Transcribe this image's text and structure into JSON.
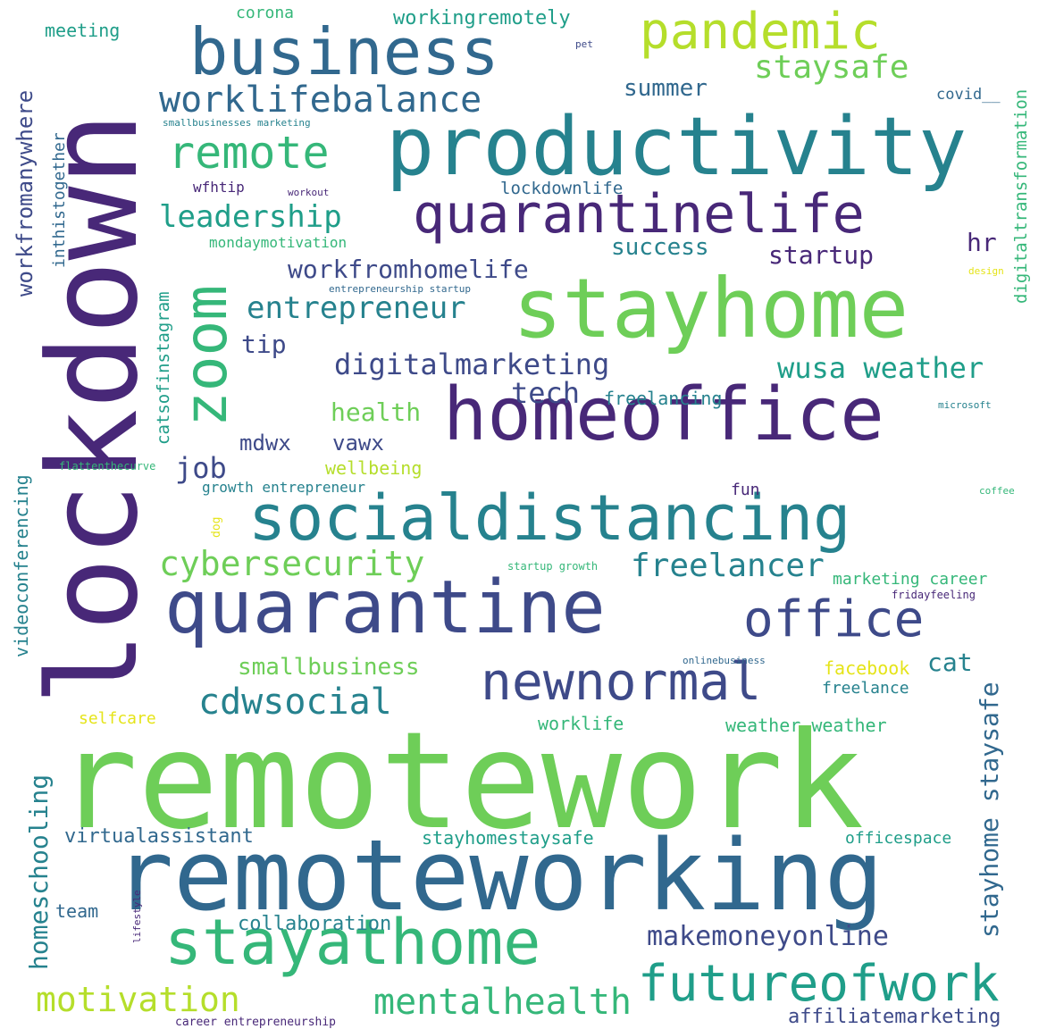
{
  "palette": {
    "dark_purple": "#482878",
    "indigo": "#3e4a89",
    "blue": "#31688e",
    "teal": "#26828e",
    "sea_green": "#1f9e89",
    "green": "#35b779",
    "light_green": "#6ece58",
    "lime": "#b5de2b",
    "yellow": "#e5e419"
  },
  "words": [
    {
      "text": "remotework",
      "color": "light_green"
    },
    {
      "text": "lockdown",
      "color": "dark_purple"
    },
    {
      "text": "remoteworking",
      "color": "blue"
    },
    {
      "text": "productivity",
      "color": "teal"
    },
    {
      "text": "stayhome",
      "color": "light_green"
    },
    {
      "text": "homeoffice",
      "color": "dark_purple"
    },
    {
      "text": "quarantine",
      "color": "indigo"
    },
    {
      "text": "socialdistancing",
      "color": "teal"
    },
    {
      "text": "business",
      "color": "blue"
    },
    {
      "text": "stayathome",
      "color": "green"
    },
    {
      "text": "quarantinelife",
      "color": "dark_purple"
    },
    {
      "text": "newnormal",
      "color": "indigo"
    },
    {
      "text": "futureofwork",
      "color": "sea_green"
    },
    {
      "text": "pandemic",
      "color": "lime"
    },
    {
      "text": "office",
      "color": "indigo"
    },
    {
      "text": "zoom",
      "color": "green"
    },
    {
      "text": "worklifebalance",
      "color": "blue"
    },
    {
      "text": "remote",
      "color": "green"
    },
    {
      "text": "staysafe",
      "color": "light_green"
    },
    {
      "text": "cybersecurity",
      "color": "light_green"
    },
    {
      "text": "cdwsocial",
      "color": "teal"
    },
    {
      "text": "mentalhealth",
      "color": "green"
    },
    {
      "text": "motivation",
      "color": "lime"
    },
    {
      "text": "makemoneyonline",
      "color": "indigo"
    },
    {
      "text": "leadership",
      "color": "sea_green"
    },
    {
      "text": "freelancer",
      "color": "teal"
    },
    {
      "text": "entrepreneur",
      "color": "teal"
    },
    {
      "text": "digitalmarketing",
      "color": "indigo"
    },
    {
      "text": "workfromhomelife",
      "color": "indigo"
    },
    {
      "text": "stayhome staysafe",
      "color": "blue"
    },
    {
      "text": "wusa weather",
      "color": "sea_green"
    },
    {
      "text": "smallbusiness",
      "color": "light_green"
    },
    {
      "text": "startup",
      "color": "dark_purple"
    },
    {
      "text": "success",
      "color": "teal"
    },
    {
      "text": "tech",
      "color": "indigo"
    },
    {
      "text": "health",
      "color": "light_green"
    },
    {
      "text": "job",
      "color": "indigo"
    },
    {
      "text": "mdwx",
      "color": "indigo"
    },
    {
      "text": "vawx",
      "color": "indigo"
    },
    {
      "text": "tip",
      "color": "indigo"
    },
    {
      "text": "hr",
      "color": "dark_purple"
    },
    {
      "text": "cat",
      "color": "teal"
    },
    {
      "text": "summer",
      "color": "blue"
    },
    {
      "text": "workfromanywhere",
      "color": "indigo"
    },
    {
      "text": "homeschooling",
      "color": "teal"
    },
    {
      "text": "videoconferencing",
      "color": "teal"
    },
    {
      "text": "virtualassistant",
      "color": "blue"
    },
    {
      "text": "collaboration",
      "color": "teal"
    },
    {
      "text": "affiliatemarketing",
      "color": "indigo"
    },
    {
      "text": "stayhomestaysafe",
      "color": "sea_green"
    },
    {
      "text": "officespace",
      "color": "sea_green"
    },
    {
      "text": "team",
      "color": "blue"
    },
    {
      "text": "wellbeing",
      "color": "lime"
    },
    {
      "text": "freelancing",
      "color": "teal"
    },
    {
      "text": "worklife",
      "color": "green"
    },
    {
      "text": "weather weather",
      "color": "green"
    },
    {
      "text": "facebook",
      "color": "yellow"
    },
    {
      "text": "freelance",
      "color": "teal"
    },
    {
      "text": "marketing career",
      "color": "green"
    },
    {
      "text": "digitaltransformation",
      "color": "green"
    },
    {
      "text": "catsofinstagram",
      "color": "sea_green"
    },
    {
      "text": "inthistogether",
      "color": "blue"
    },
    {
      "text": "lockdownlife",
      "color": "blue"
    },
    {
      "text": "mondaymotivation",
      "color": "green"
    },
    {
      "text": "growth entrepreneur",
      "color": "teal"
    },
    {
      "text": "selfcare",
      "color": "yellow"
    },
    {
      "text": "wfhtip",
      "color": "dark_purple"
    },
    {
      "text": "workingremotely",
      "color": "sea_green"
    },
    {
      "text": "meeting",
      "color": "sea_green"
    },
    {
      "text": "corona",
      "color": "green"
    },
    {
      "text": "covid__",
      "color": "blue"
    },
    {
      "text": "fun",
      "color": "dark_purple"
    },
    {
      "text": "startup growth",
      "color": "green"
    },
    {
      "text": "flattenthecurve",
      "color": "green"
    },
    {
      "text": "microsoft",
      "color": "teal"
    },
    {
      "text": "coffee",
      "color": "green"
    },
    {
      "text": "fridayfeeling",
      "color": "dark_purple"
    },
    {
      "text": "onlinebusiness",
      "color": "blue"
    },
    {
      "text": "dog",
      "color": "yellow"
    },
    {
      "text": "design",
      "color": "yellow"
    },
    {
      "text": "smallbusinesses marketing",
      "color": "teal"
    },
    {
      "text": "entrepreneurship startup",
      "color": "blue"
    },
    {
      "text": "workout",
      "color": "dark_purple"
    },
    {
      "text": "pet",
      "color": "indigo"
    },
    {
      "text": "lifestyle",
      "color": "dark_purple"
    },
    {
      "text": "career entrepreneurship",
      "color": "dark_purple"
    }
  ]
}
